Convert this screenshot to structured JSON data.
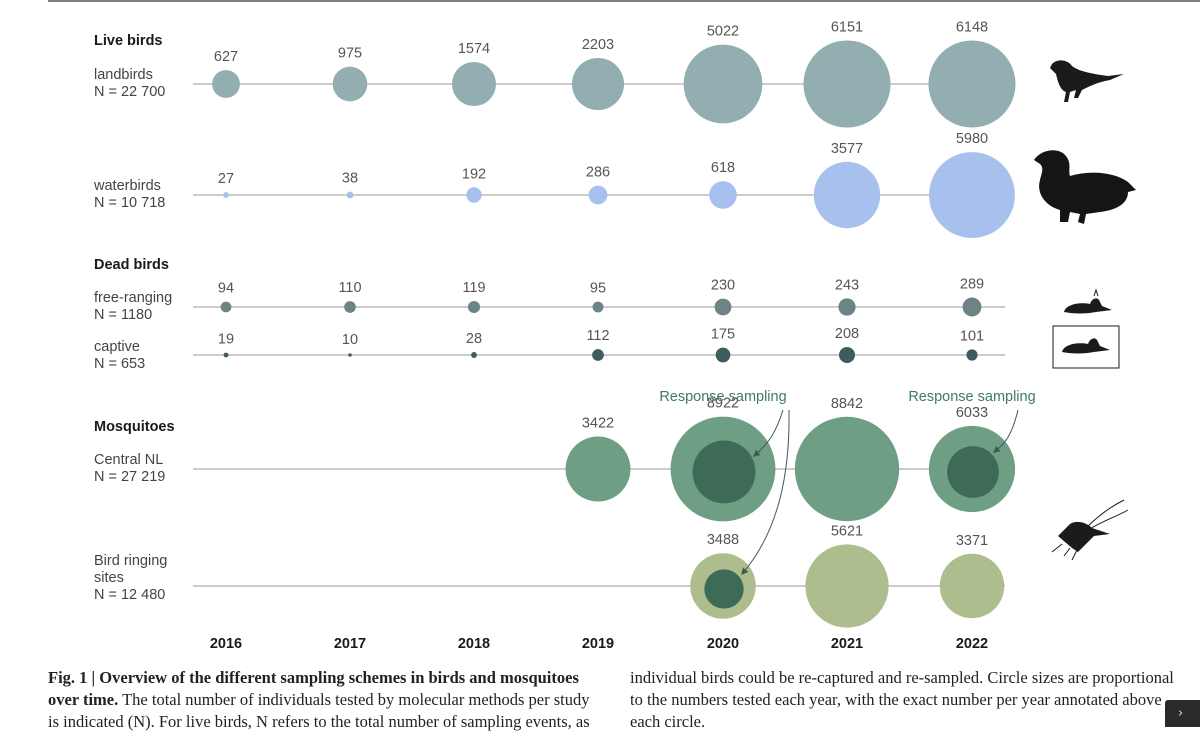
{
  "chart_data": {
    "type": "bubble",
    "years": [
      "2016",
      "2017",
      "2018",
      "2019",
      "2020",
      "2021",
      "2022"
    ],
    "sections": [
      {
        "title": "Live birds",
        "rows": [
          {
            "key": "landbirds",
            "label_lines": [
              "landbirds",
              "N = 22 700"
            ],
            "color": "#93aeb1",
            "values": [
              627,
              975,
              1574,
              2203,
              5022,
              6151,
              6148
            ],
            "icon": "landbird-silhouette-icon"
          },
          {
            "key": "waterbirds",
            "label_lines": [
              "waterbirds",
              "N = 10 718"
            ],
            "color": "#a7c0ee",
            "values": [
              27,
              38,
              192,
              286,
              618,
              3577,
              5980
            ],
            "icon": "duck-silhouette-icon"
          }
        ]
      },
      {
        "title": "Dead birds",
        "rows": [
          {
            "key": "free_ranging",
            "label_lines": [
              "free-ranging",
              "N = 1180"
            ],
            "color": "#6c8486",
            "values": [
              94,
              110,
              119,
              95,
              230,
              243,
              289
            ],
            "icon": "dead-bird-icon"
          },
          {
            "key": "captive",
            "label_lines": [
              "captive",
              "N = 653"
            ],
            "color": "#3f5b5d",
            "values": [
              19,
              10,
              28,
              112,
              175,
              208,
              101
            ],
            "icon": "dead-bird-captive-icon"
          }
        ]
      },
      {
        "title": "Mosquitoes",
        "rows": [
          {
            "key": "central_nl",
            "label_lines": [
              "Central NL",
              "N = 27 219"
            ],
            "color": "#6e9f84",
            "values": [
              null,
              null,
              null,
              3422,
              8922,
              8842,
              6033
            ],
            "icon": "mosquito-icon"
          },
          {
            "key": "bird_ringing",
            "label_lines": [
              "Bird ringing",
              "sites",
              "N = 12 480"
            ],
            "color": "#aebd8d",
            "values": [
              null,
              null,
              null,
              null,
              3488,
              5621,
              3371
            ],
            "icon": null
          }
        ]
      }
    ],
    "response_sampling": {
      "label": "Response sampling",
      "inner_color": "#3d6b58",
      "cells": [
        {
          "row": "central_nl",
          "year": "2020"
        },
        {
          "row": "central_nl",
          "year": "2022"
        },
        {
          "row": "bird_ringing",
          "year": "2020"
        }
      ]
    },
    "annotations": [
      {
        "text": "Response sampling",
        "near": "central_nl 2020"
      },
      {
        "text": "Response sampling",
        "near": "central_nl 2022"
      }
    ]
  },
  "caption": {
    "left_lines": [
      {
        "bold": "Fig. 1 | Overview of the different sampling schemes in birds and mosquitoes",
        "rest": ""
      },
      {
        "bold": "over time.",
        "rest": " The total number of individuals tested by molecular methods per study"
      },
      {
        "bold": "",
        "rest": "is indicated (N). For live birds, N refers to the total number of sampling events, as"
      }
    ],
    "right_lines": [
      "individual birds could be re-captured and re-sampled. Circle sizes are proportional",
      "to the numbers tested each year, with the exact number per year annotated above",
      "each circle."
    ]
  },
  "corner_tab": {
    "glyph": "›"
  }
}
